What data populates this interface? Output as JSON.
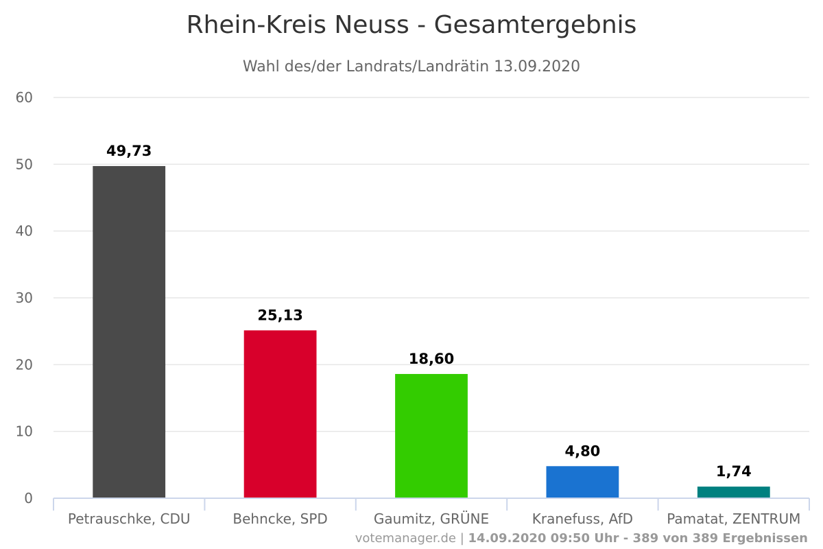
{
  "chart_data": {
    "type": "bar",
    "title": "Rhein-Kreis Neuss - Gesamtergebnis",
    "subtitle": "Wahl des/der Landrats/Landrätin 13.09.2020",
    "categories": [
      "Petrauschke, CDU",
      "Behncke, SPD",
      "Gaumitz, GRÜNE",
      "Kranefuss, AfD",
      "Pamatat, ZENTRUM"
    ],
    "values": [
      49.73,
      25.13,
      18.6,
      4.8,
      1.74
    ],
    "value_labels": [
      "49,73",
      "25,13",
      "18,60",
      "4,80",
      "1,74"
    ],
    "colors": [
      "#4a4a4a",
      "#d8002b",
      "#33cc00",
      "#1a73d1",
      "#008080"
    ],
    "xlabel": "",
    "ylabel": "",
    "ylim": [
      0,
      60
    ],
    "yticks": [
      0,
      10,
      20,
      30,
      40,
      50,
      60
    ],
    "grid": true,
    "legend": "none"
  },
  "credits": {
    "source": "votemanager.de",
    "separator": " | ",
    "info": "14.09.2020 09:50 Uhr - 389 von 389 Ergebnissen"
  }
}
